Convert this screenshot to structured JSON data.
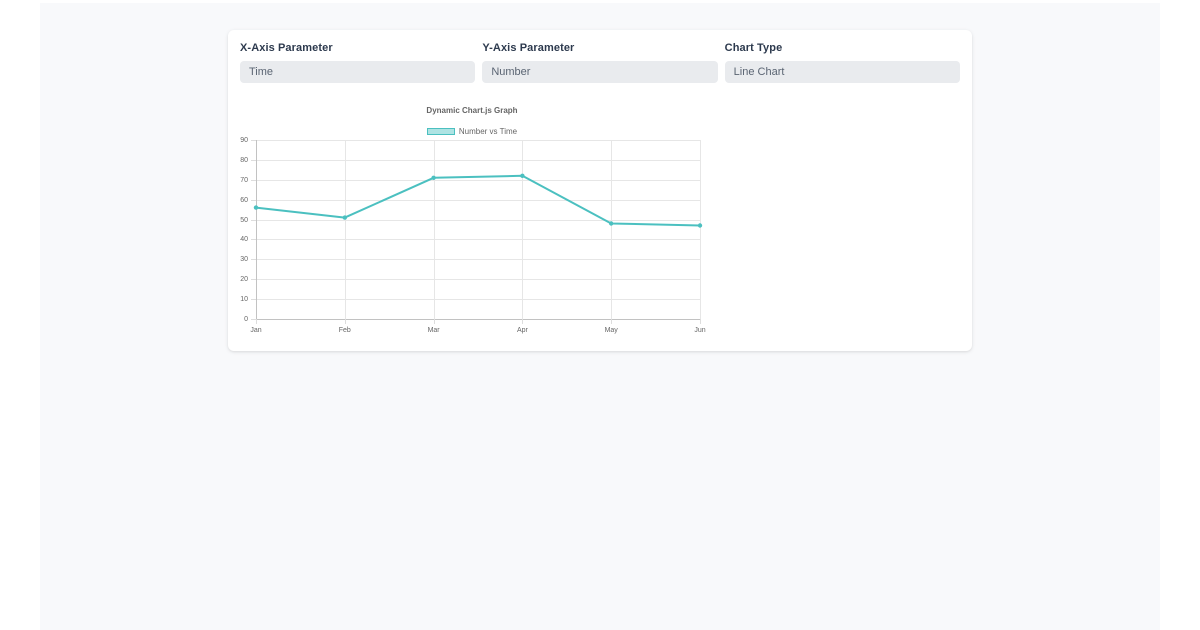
{
  "page": {
    "background": "#ffffff",
    "panel_background": "#f8f9fb"
  },
  "form": {
    "fields": [
      {
        "label": "X-Axis Parameter",
        "value": "Time"
      },
      {
        "label": "Y-Axis Parameter",
        "value": "Number"
      },
      {
        "label": "Chart Type",
        "value": "Line Chart"
      }
    ]
  },
  "chart_data": {
    "type": "line",
    "title": "Dynamic Chart.js Graph",
    "categories": [
      "Jan",
      "Feb",
      "Mar",
      "Apr",
      "May",
      "Jun"
    ],
    "series": [
      {
        "name": "Number vs Time",
        "values": [
          56,
          51,
          71,
          72,
          48,
          47
        ],
        "color": "#4bc0c0",
        "fill_color": "rgba(75,192,192,0.45)"
      }
    ],
    "xlabel": "",
    "ylabel": "",
    "ylim": [
      0,
      90
    ],
    "ytick_step": 10,
    "grid": true,
    "legend_position": "top"
  }
}
